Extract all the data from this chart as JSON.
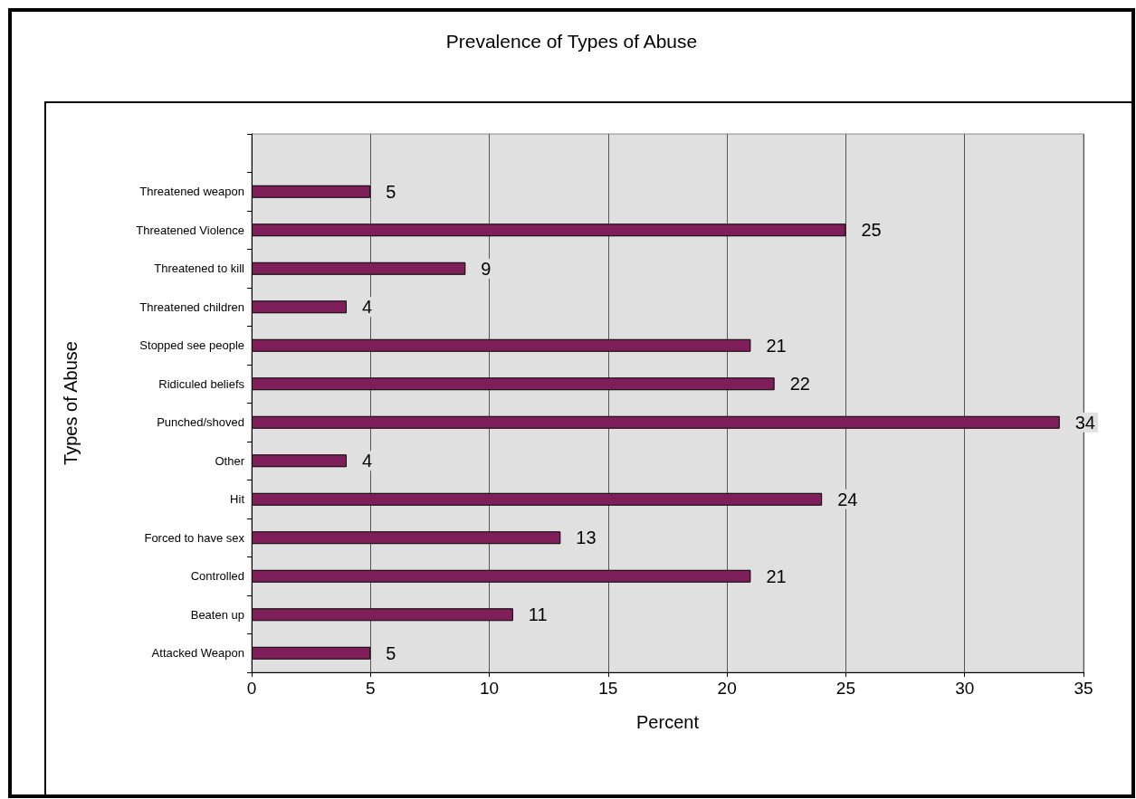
{
  "chart_data": {
    "type": "bar",
    "orientation": "horizontal",
    "title": "Prevalence of Types of Abuse",
    "xlabel": "Percent",
    "ylabel": "Types of Abuse",
    "categories": [
      null,
      "Threatened weapon",
      "Threatened Violence",
      "Threatened to kill",
      "Threatened children",
      "Stopped see people",
      "Ridiculed beliefs",
      "Punched/shoved",
      "Other",
      "Hit",
      "Forced to have sex",
      "Controlled",
      "Beaten up",
      "Attacked Weapon"
    ],
    "values": [
      null,
      5,
      25,
      9,
      4,
      21,
      22,
      34,
      4,
      24,
      13,
      21,
      11,
      5
    ],
    "color": "#7f1f5a",
    "xlim": [
      0,
      35
    ],
    "xticks": [
      0,
      5,
      10,
      15,
      20,
      25,
      30,
      35
    ],
    "grid": "x",
    "data_labels": true
  }
}
